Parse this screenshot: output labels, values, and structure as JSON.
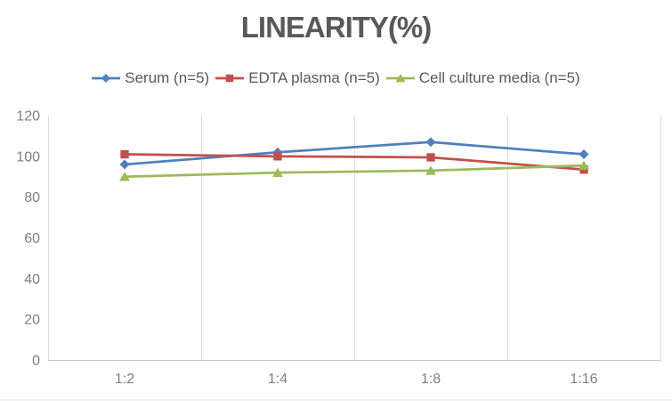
{
  "title": "LINEARITY(%)",
  "chart_data": {
    "type": "line",
    "title": "LINEARITY(%)",
    "categories": [
      "1:2",
      "1:4",
      "1:8",
      "1:16"
    ],
    "series": [
      {
        "name": "Serum (n=5)",
        "color": "#4F81BD",
        "marker": "diamond",
        "values": [
          96,
          102,
          107,
          101
        ]
      },
      {
        "name": "EDTA plasma (n=5)",
        "color": "#C0504D",
        "marker": "square",
        "values": [
          101,
          100,
          99.5,
          93.5
        ]
      },
      {
        "name": "Cell culture media (n=5)",
        "color": "#9BBB59",
        "marker": "triangle",
        "values": [
          90,
          92,
          93,
          95.5
        ]
      }
    ],
    "xlabel": "",
    "ylabel": "",
    "ylim": [
      0,
      120
    ],
    "ytick_step": 20,
    "ytick_labels": [
      "0",
      "20",
      "40",
      "60",
      "80",
      "100",
      "120"
    ],
    "grid": "vertical-only",
    "legend_position": "top",
    "colors": {
      "title_text": "#595959",
      "legend_text": "#595959",
      "tick_text": "#7F7F7F",
      "gridline": "#D9D9D9",
      "axis_line": "#C9C9C9",
      "background": "#FFFFFF"
    }
  }
}
